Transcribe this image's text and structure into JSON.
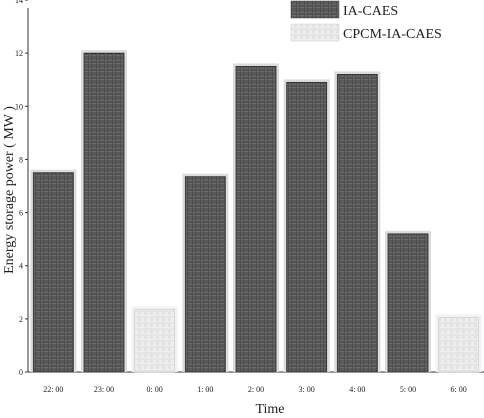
{
  "chart_data": {
    "type": "bar",
    "title": "",
    "xlabel": "Time",
    "ylabel": "Energy storage power ( MW )",
    "ylim": [
      0,
      14
    ],
    "yticks": [
      0,
      2,
      4,
      6,
      8,
      10,
      12,
      14
    ],
    "categories": [
      "22: 00",
      "23: 00",
      "0: 00",
      "1: 00",
      "2: 00",
      "3: 00",
      "4: 00",
      "5: 00",
      "6: 00"
    ],
    "series": [
      {
        "name": "IA-CAES",
        "values": [
          7.5,
          12.0,
          null,
          7.35,
          11.5,
          10.9,
          11.2,
          5.2,
          null
        ],
        "color": "#555555"
      },
      {
        "name": "CPCM-IA-CAES",
        "values": [
          null,
          null,
          2.35,
          null,
          null,
          null,
          null,
          null,
          2.05
        ],
        "color": "#e6e6e6"
      }
    ],
    "legend": {
      "position": "top-right",
      "entries": [
        "IA-CAES",
        "CPCM-IA-CAES"
      ]
    },
    "grid": false
  }
}
